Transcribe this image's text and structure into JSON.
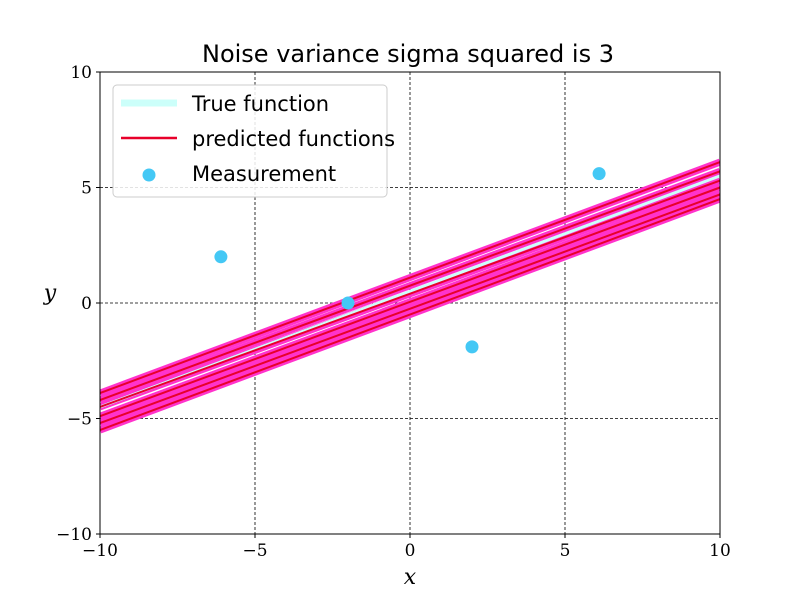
{
  "chart_data": {
    "type": "line",
    "title": "Noise variance sigma squared is 3",
    "xlabel": "x",
    "ylabel": "y",
    "xlim": [
      -10,
      10
    ],
    "ylim": [
      -10,
      10
    ],
    "xticks": [
      -10,
      -5,
      0,
      5,
      10
    ],
    "yticks": [
      -10,
      -5,
      0,
      5,
      10
    ],
    "xtick_labels": [
      "−10",
      "−5",
      "0",
      "5",
      "10"
    ],
    "ytick_labels": [
      "−10",
      "−5",
      "0",
      "5",
      "10"
    ],
    "grid": true,
    "legend_position": "top-left",
    "true_function": {
      "name": "True function",
      "color": "#ccfffa",
      "x": [
        -10,
        10
      ],
      "y": [
        -4.5,
        5.5
      ]
    },
    "predicted_functions": {
      "name": "predicted functions",
      "color": "#e8002a",
      "band_color": "#ff33cc",
      "lines": [
        {
          "x": [
            -10,
            10
          ],
          "y": [
            -3.9,
            6.1
          ]
        },
        {
          "x": [
            -10,
            10
          ],
          "y": [
            -4.2,
            5.7
          ]
        },
        {
          "x": [
            -10,
            10
          ],
          "y": [
            -4.5,
            5.3
          ]
        },
        {
          "x": [
            -10,
            10
          ],
          "y": [
            -4.9,
            5.0
          ]
        },
        {
          "x": [
            -10,
            10
          ],
          "y": [
            -5.2,
            4.7
          ]
        },
        {
          "x": [
            -10,
            10
          ],
          "y": [
            -5.5,
            4.5
          ]
        }
      ]
    },
    "measurements": {
      "name": "Measurement",
      "color": "#44c8f5",
      "x": [
        -6.1,
        -2.0,
        2.0,
        6.1
      ],
      "y": [
        2.0,
        0.0,
        -1.9,
        5.6
      ]
    }
  }
}
